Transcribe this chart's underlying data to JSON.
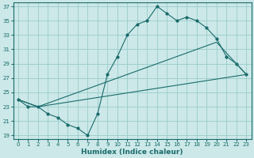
{
  "title": "",
  "xlabel": "Humidex (Indice chaleur)",
  "xlim": [
    -0.5,
    23.5
  ],
  "ylim": [
    18.5,
    37.5
  ],
  "xticks": [
    0,
    1,
    2,
    3,
    4,
    5,
    6,
    7,
    8,
    9,
    10,
    11,
    12,
    13,
    14,
    15,
    16,
    17,
    18,
    19,
    20,
    21,
    22,
    23
  ],
  "yticks": [
    19,
    21,
    23,
    25,
    27,
    29,
    31,
    33,
    35,
    37
  ],
  "background_color": "#cce8e8",
  "grid_color": "#99cccc",
  "line_color": "#1a6b6b",
  "line1_x": [
    0,
    1,
    2,
    3,
    4,
    5,
    6,
    7,
    8,
    9,
    10,
    11,
    12,
    13,
    14,
    15,
    16,
    17,
    18,
    19,
    20,
    21,
    22,
    23
  ],
  "line1_y": [
    24,
    23,
    23,
    22,
    21.5,
    20.5,
    20,
    19,
    22,
    27.5,
    30,
    33,
    34.5,
    35,
    37,
    36,
    35,
    35.5,
    35,
    34,
    32.5,
    30,
    29,
    27.5
  ],
  "line2_x": [
    0,
    2,
    23
  ],
  "line2_y": [
    24,
    23,
    27.5
  ],
  "line3_x": [
    0,
    2,
    20,
    23
  ],
  "line3_y": [
    24,
    23,
    32,
    27.5
  ],
  "tick_fontsize": 5.0,
  "xlabel_fontsize": 6.5
}
